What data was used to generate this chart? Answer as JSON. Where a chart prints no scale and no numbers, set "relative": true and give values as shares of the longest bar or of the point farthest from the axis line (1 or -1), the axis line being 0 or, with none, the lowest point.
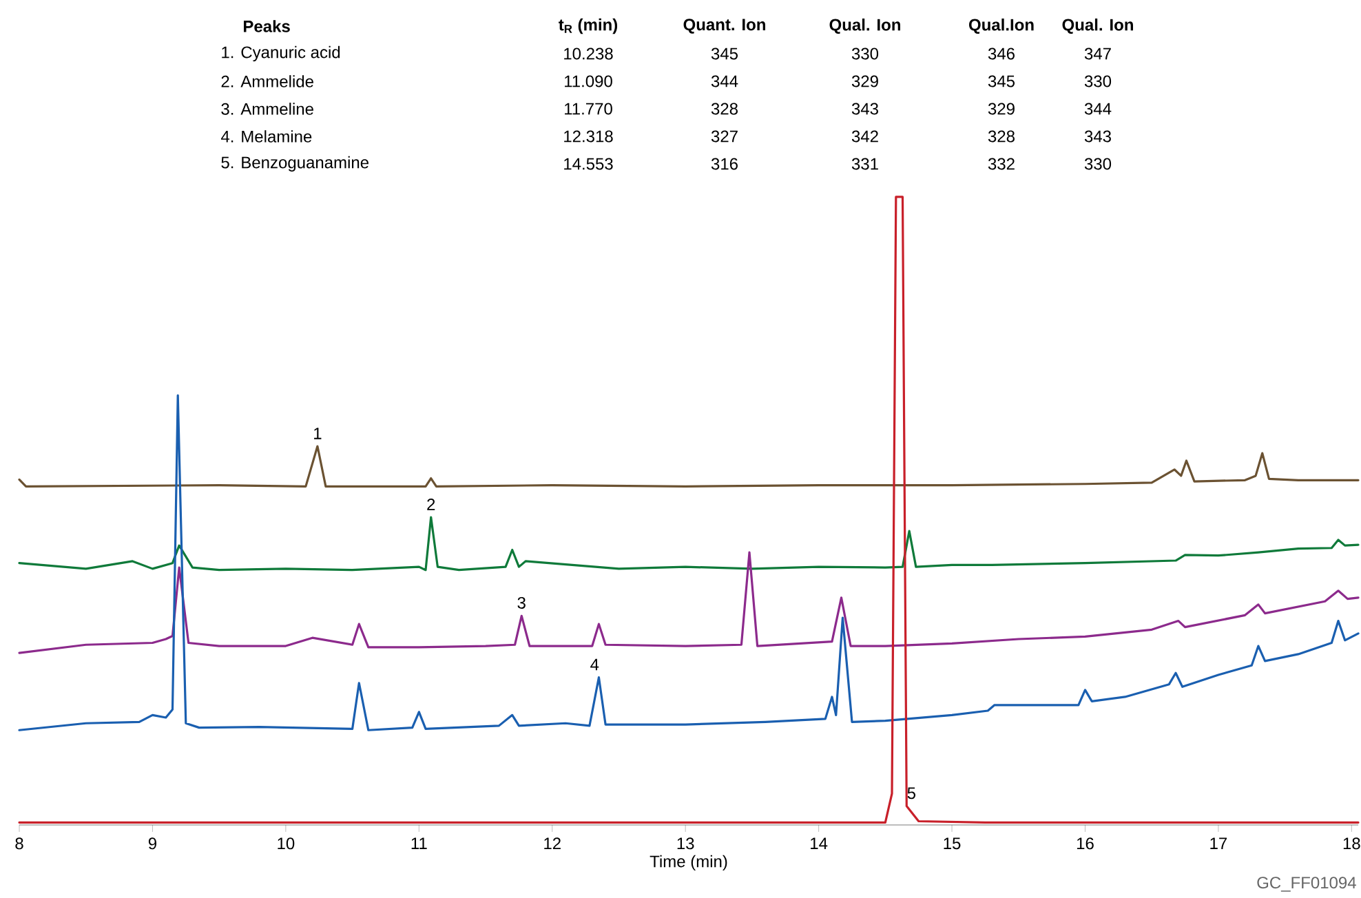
{
  "chart_data": {
    "type": "line",
    "relative": true,
    "xlabel": "Time (min)",
    "xlim": [
      8,
      18.05
    ],
    "xticks": [
      8,
      9,
      10,
      11,
      12,
      13,
      14,
      15,
      16,
      17,
      18
    ],
    "series": [
      {
        "color": "#6b5232",
        "x": [
          8.0,
          8.05,
          9.5,
          10.15,
          10.238,
          10.3,
          11.05,
          11.09,
          11.13,
          12.0,
          13.0,
          14.0,
          15.0,
          16.0,
          16.5,
          16.67,
          16.72,
          16.76,
          16.82,
          17.2,
          17.28,
          17.33,
          17.38,
          17.6,
          18.05
        ],
        "values": [
          0.55,
          0.539,
          0.541,
          0.539,
          0.603,
          0.539,
          0.539,
          0.552,
          0.539,
          0.541,
          0.539,
          0.541,
          0.541,
          0.543,
          0.545,
          0.566,
          0.556,
          0.58,
          0.547,
          0.549,
          0.556,
          0.592,
          0.551,
          0.549,
          0.549
        ]
      },
      {
        "color": "#0f7a3a",
        "x": [
          8.0,
          8.5,
          8.85,
          9.0,
          9.15,
          9.2,
          9.3,
          9.5,
          10.0,
          10.5,
          11.0,
          11.05,
          11.09,
          11.14,
          11.3,
          11.65,
          11.7,
          11.75,
          11.8,
          12.5,
          13.0,
          13.5,
          14.0,
          14.5,
          14.63,
          14.68,
          14.73,
          15.0,
          15.3,
          16.0,
          16.68,
          16.75,
          17.0,
          17.3,
          17.6,
          17.85,
          17.9,
          17.95,
          18.05
        ],
        "values": [
          0.417,
          0.408,
          0.42,
          0.408,
          0.417,
          0.445,
          0.41,
          0.406,
          0.408,
          0.406,
          0.411,
          0.406,
          0.49,
          0.411,
          0.406,
          0.411,
          0.438,
          0.411,
          0.42,
          0.408,
          0.411,
          0.408,
          0.411,
          0.41,
          0.411,
          0.468,
          0.411,
          0.414,
          0.414,
          0.417,
          0.421,
          0.43,
          0.429,
          0.434,
          0.44,
          0.441,
          0.454,
          0.445,
          0.446
        ]
      },
      {
        "color": "#8c2a8c",
        "x": [
          8.0,
          8.5,
          9.0,
          9.1,
          9.15,
          9.2,
          9.27,
          9.5,
          10.0,
          10.2,
          10.5,
          10.55,
          10.62,
          11.0,
          11.5,
          11.72,
          11.77,
          11.83,
          12.3,
          12.35,
          12.4,
          13.0,
          13.42,
          13.48,
          13.54,
          14.1,
          14.17,
          14.24,
          14.5,
          15.0,
          15.5,
          16.0,
          16.5,
          16.7,
          16.75,
          17.2,
          17.3,
          17.35,
          17.8,
          17.9,
          17.97,
          18.05
        ],
        "values": [
          0.274,
          0.287,
          0.29,
          0.296,
          0.301,
          0.41,
          0.29,
          0.285,
          0.285,
          0.298,
          0.287,
          0.32,
          0.283,
          0.283,
          0.285,
          0.287,
          0.333,
          0.285,
          0.285,
          0.32,
          0.287,
          0.285,
          0.287,
          0.434,
          0.285,
          0.292,
          0.362,
          0.285,
          0.285,
          0.289,
          0.296,
          0.3,
          0.311,
          0.325,
          0.315,
          0.334,
          0.351,
          0.337,
          0.356,
          0.373,
          0.36,
          0.362
        ]
      },
      {
        "color": "#1a5fb0",
        "x": [
          8.0,
          8.5,
          8.9,
          9.0,
          9.1,
          9.15,
          9.19,
          9.25,
          9.35,
          9.8,
          10.5,
          10.55,
          10.62,
          10.95,
          11.0,
          11.05,
          11.6,
          11.7,
          11.75,
          12.1,
          12.28,
          12.35,
          12.4,
          13.0,
          13.6,
          14.05,
          14.1,
          14.13,
          14.18,
          14.25,
          14.5,
          15.0,
          15.27,
          15.32,
          15.95,
          16.0,
          16.05,
          16.3,
          16.63,
          16.68,
          16.73,
          17.0,
          17.25,
          17.3,
          17.35,
          17.6,
          17.85,
          17.9,
          17.95,
          18.05
        ],
        "values": [
          0.151,
          0.162,
          0.164,
          0.175,
          0.171,
          0.184,
          0.684,
          0.162,
          0.155,
          0.156,
          0.153,
          0.226,
          0.151,
          0.155,
          0.18,
          0.153,
          0.158,
          0.175,
          0.158,
          0.162,
          0.158,
          0.235,
          0.16,
          0.16,
          0.164,
          0.169,
          0.204,
          0.175,
          0.33,
          0.164,
          0.166,
          0.175,
          0.182,
          0.191,
          0.191,
          0.215,
          0.197,
          0.204,
          0.224,
          0.242,
          0.22,
          0.239,
          0.254,
          0.285,
          0.261,
          0.272,
          0.29,
          0.325,
          0.294,
          0.305
        ]
      },
      {
        "color": "#c8202a",
        "x": [
          8.0,
          13.1,
          14.5,
          14.55,
          14.58,
          14.63,
          14.66,
          14.75,
          15.25,
          18.05
        ],
        "values": [
          0.004,
          0.004,
          0.004,
          0.05,
          1,
          1,
          0.03,
          0.006,
          0.004,
          0.004
        ]
      }
    ],
    "annotations": [
      "Peaks",
      "t$_{R}$ (min)",
      "Quant. Ion",
      "Qual. Ion",
      "Qual.Ion",
      "Qual. Ion",
      "1. Cyanuric acid",
      "10.238",
      "345",
      "330",
      "346",
      "347",
      "2. Ammelide",
      "11.090",
      "344",
      "329",
      "345",
      "330",
      "3. Ammeline",
      "11.770",
      "328",
      "343",
      "329",
      "344",
      "4. Melamine",
      "12.318",
      "327",
      "342",
      "328",
      "343",
      "5. Benzoguanamine",
      "14.553",
      "316",
      "331",
      "332",
      "330",
      "GC_FF01094",
      {
        "text": "1",
        "x": 10.238,
        "y": 0.603
      },
      {
        "text": "2",
        "x": 11.09,
        "y": 0.49
      },
      {
        "text": "3",
        "x": 11.77,
        "y": 0.333
      },
      {
        "text": "4",
        "x": 12.318,
        "y": 0.235
      },
      {
        "text": "5",
        "x": 14.66,
        "y": 0.03
      }
    ]
  }
}
